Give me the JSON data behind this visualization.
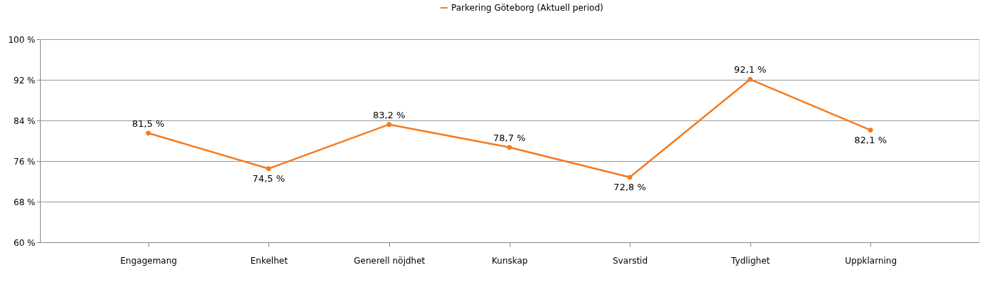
{
  "chart_data": {
    "type": "line",
    "categories": [
      "Engagemang",
      "Enkelhet",
      "Generell nöjdhet",
      "Kunskap",
      "Svarstid",
      "Tydlighet",
      "Uppklarning"
    ],
    "series": [
      {
        "name": "Parkering Göteborg (Aktuell period)",
        "color": "#f47b20",
        "values": [
          81.5,
          74.5,
          83.2,
          78.7,
          72.8,
          92.1,
          82.1
        ],
        "value_labels": [
          "81,5 %",
          "74,5 %",
          "83,2 %",
          "78,7 %",
          "72,8 %",
          "92,1 %",
          "82,1 %"
        ]
      }
    ],
    "ylim": [
      60,
      100
    ],
    "yticks": [
      {
        "value": 60,
        "label": "60 %"
      },
      {
        "value": 68,
        "label": "68 %"
      },
      {
        "value": 76,
        "label": "76 %"
      },
      {
        "value": 84,
        "label": "84 %"
      },
      {
        "value": 92,
        "label": "92 %"
      },
      {
        "value": 100,
        "label": "100 %"
      }
    ],
    "grid": "y",
    "legend": "top",
    "marker": "circle",
    "line_style": "solid"
  }
}
